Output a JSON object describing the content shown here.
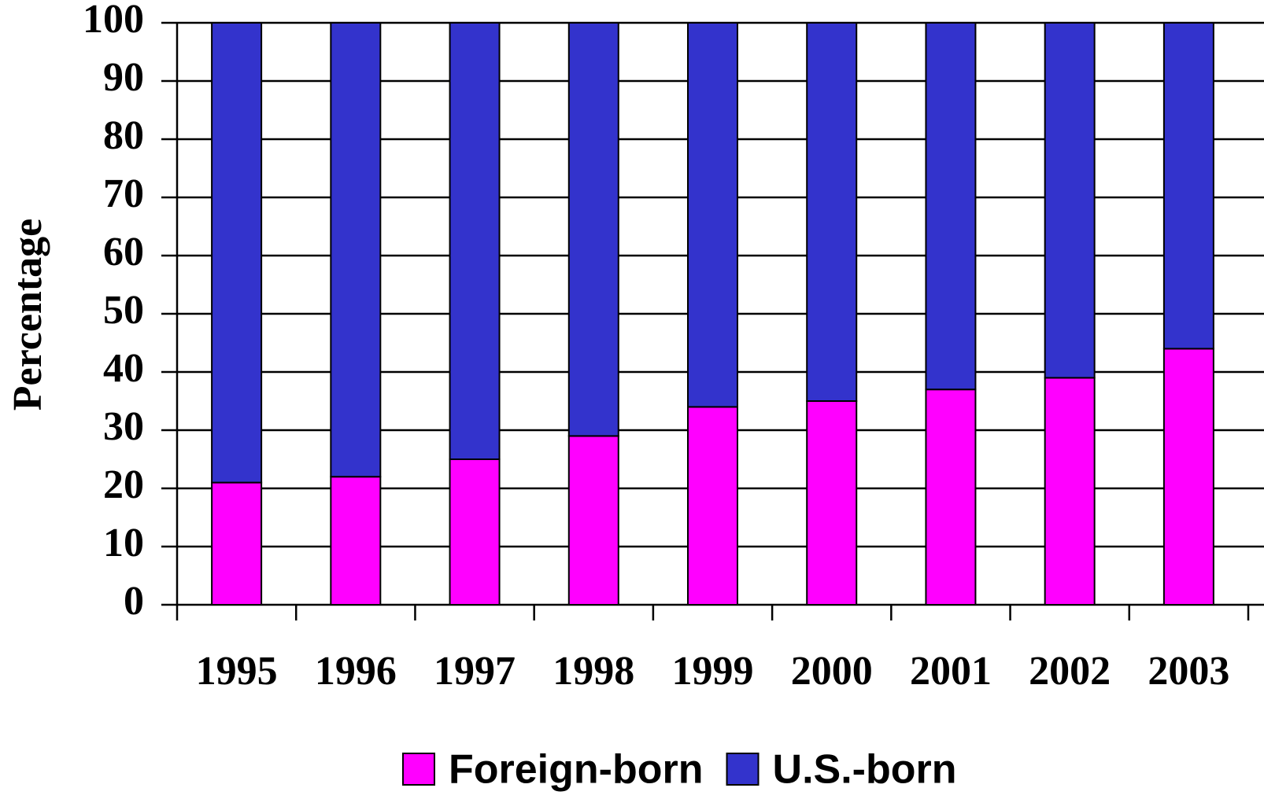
{
  "chart_data": {
    "type": "stacked_bar",
    "y_label": "Percentage",
    "categories": [
      "1995",
      "1996",
      "1997",
      "1998",
      "1999",
      "2000",
      "2001",
      "2002",
      "2003"
    ],
    "series": [
      {
        "name": "Foreign-born",
        "color": "#ff00ff",
        "values": [
          21,
          22,
          25,
          29,
          34,
          35,
          37,
          39,
          44
        ]
      },
      {
        "name": "U.S.-born",
        "color": "#3333cc",
        "values": [
          79,
          78,
          75,
          71,
          66,
          65,
          63,
          61,
          56
        ]
      }
    ],
    "ylim": [
      0,
      100
    ],
    "yticks": [
      0,
      10,
      20,
      30,
      40,
      50,
      60,
      70,
      80,
      90,
      100
    ],
    "grid": true
  }
}
